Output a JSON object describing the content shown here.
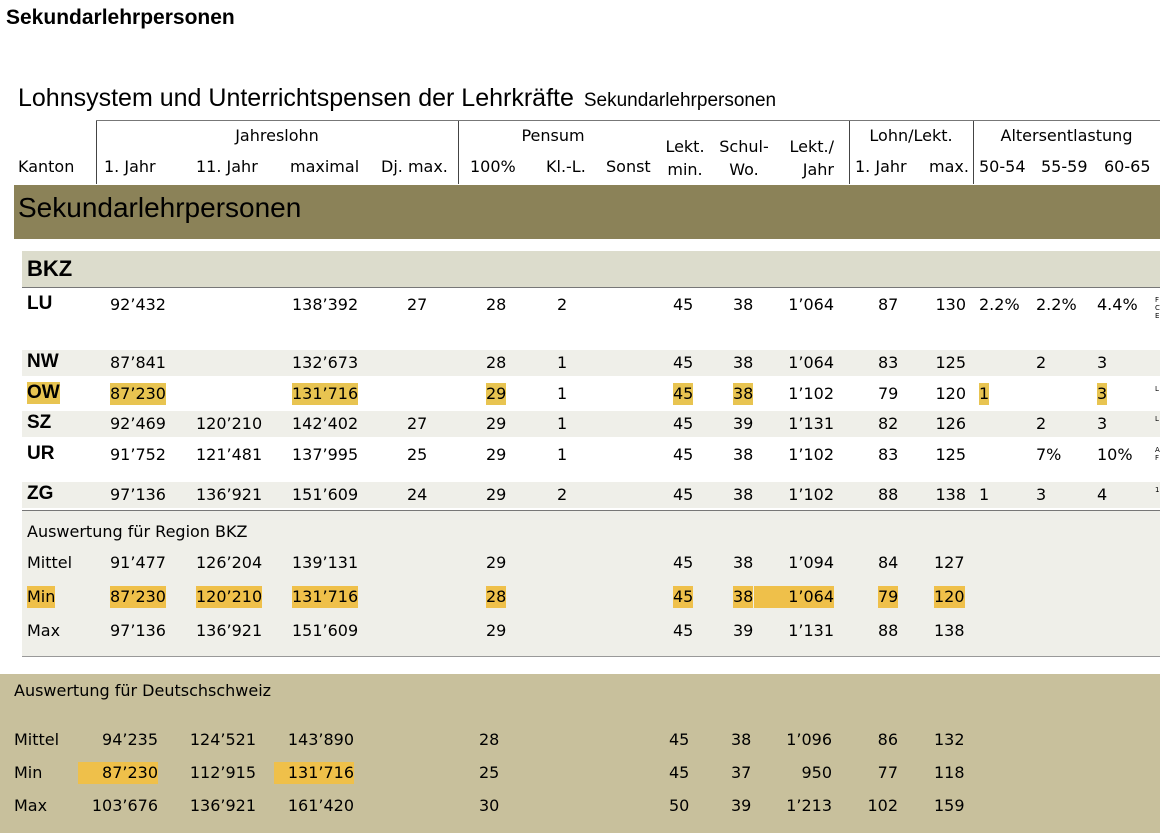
{
  "page_title": "Sekundarlehrpersonen",
  "doc_title": "Lohnsystem und Unterrichtspensen der Lehrkräfte",
  "doc_subtitle": "Sekundarlehrpersonen",
  "headers": {
    "group_jahreslohn": "Jahreslohn",
    "group_pensum": "Pensum",
    "group_lohn_lekt": "Lohn/Lekt.",
    "group_altersentlastung": "Altersentlastung",
    "kanton": "Kanton",
    "jahr1": "1. Jahr",
    "jahr11": "11. Jahr",
    "maximal": "maximal",
    "dj_max": "Dj. max.",
    "p100": "100%",
    "kl_l": "Kl.-L.",
    "sonst": "Sonst",
    "lekt_min_1": "Lekt.",
    "lekt_min_2": "min.",
    "schul_wo_1": "Schul-",
    "schul_wo_2": "Wo.",
    "lekt_jahr_1": "Lekt./",
    "lekt_jahr_2": "Jahr",
    "ll_jahr1": "1. Jahr",
    "ll_max": "max.",
    "a50": "50-54",
    "a55": "55-59",
    "a60": "60-65"
  },
  "section_band": "Sekundarlehrpersonen",
  "region_band": "BKZ",
  "rows": [
    {
      "kanton": "LU",
      "j1": "92’432",
      "j11": "",
      "max": "138’392",
      "dj": "27",
      "p100": "28",
      "kl": "2",
      "sonst": "",
      "lekt": "45",
      "wo": "38",
      "lj": "1’064",
      "ll1": "87",
      "llm": "130",
      "a50": "2.2%",
      "a55": "2.2%",
      "a60": "4.4%",
      "note": "F C E"
    },
    {
      "kanton": "NW",
      "j1": "87’841",
      "j11": "",
      "max": "132’673",
      "dj": "",
      "p100": "28",
      "kl": "1",
      "sonst": "",
      "lekt": "45",
      "wo": "38",
      "lj": "1’064",
      "ll1": "83",
      "llm": "125",
      "a50": "",
      "a55": "2",
      "a60": "3",
      "note": ""
    },
    {
      "kanton": "OW",
      "j1": "87’230",
      "j11": "",
      "max": "131’716",
      "dj": "",
      "p100": "29",
      "kl": "1",
      "sonst": "",
      "lekt": "45",
      "wo": "38",
      "lj": "1’102",
      "ll1": "79",
      "llm": "120",
      "a50": "1",
      "a55": "",
      "a60": "3",
      "note": "L"
    },
    {
      "kanton": "SZ",
      "j1": "92’469",
      "j11": "120’210",
      "max": "142’402",
      "dj": "27",
      "p100": "29",
      "kl": "1",
      "sonst": "",
      "lekt": "45",
      "wo": "39",
      "lj": "1’131",
      "ll1": "82",
      "llm": "126",
      "a50": "",
      "a55": "2",
      "a60": "3",
      "note": "L"
    },
    {
      "kanton": "UR",
      "j1": "91’752",
      "j11": "121’481",
      "max": "137’995",
      "dj": "25",
      "p100": "29",
      "kl": "1",
      "sonst": "",
      "lekt": "45",
      "wo": "38",
      "lj": "1’102",
      "ll1": "83",
      "llm": "125",
      "a50": "",
      "a55": "7%",
      "a60": "10%",
      "note": "A F"
    },
    {
      "kanton": "ZG",
      "j1": "97’136",
      "j11": "136’921",
      "max": "151’609",
      "dj": "24",
      "p100": "29",
      "kl": "2",
      "sonst": "",
      "lekt": "45",
      "wo": "38",
      "lj": "1’102",
      "ll1": "88",
      "llm": "138",
      "a50": "1",
      "a55": "3",
      "a60": "4",
      "note": "1"
    }
  ],
  "region_eval": {
    "title": "Auswertung für Region BKZ",
    "rows": [
      {
        "label": "Mittel",
        "j1": "91’477",
        "j11": "126’204",
        "max": "139’131",
        "p100": "29",
        "lekt": "45",
        "wo": "38",
        "lj": "1’094",
        "ll1": "84",
        "llm": "127"
      },
      {
        "label": "Min",
        "j1": "87’230",
        "j11": "120’210",
        "max": "131’716",
        "p100": "28",
        "lekt": "45",
        "wo": "38",
        "lj": "1’064",
        "ll1": "79",
        "llm": "120"
      },
      {
        "label": "Max",
        "j1": "97’136",
        "j11": "136’921",
        "max": "151’609",
        "p100": "29",
        "lekt": "45",
        "wo": "39",
        "lj": "1’131",
        "ll1": "88",
        "llm": "138"
      }
    ]
  },
  "ch_eval": {
    "title": "Auswertung für Deutschschweiz",
    "rows": [
      {
        "label": "Mittel",
        "j1": "94’235",
        "j11": "124’521",
        "max": "143’890",
        "p100": "28",
        "lekt": "45",
        "wo": "38",
        "lj": "1’096",
        "ll1": "86",
        "llm": "132"
      },
      {
        "label": "Min",
        "j1": "87’230",
        "j11": "112’915",
        "max": "131’716",
        "p100": "25",
        "lekt": "45",
        "wo": "37",
        "lj": "950",
        "ll1": "77",
        "llm": "118"
      },
      {
        "label": "Max",
        "j1": "103’676",
        "j11": "136’921",
        "max": "161’420",
        "p100": "30",
        "lekt": "50",
        "wo": "39",
        "lj": "1’213",
        "ll1": "102",
        "llm": "159"
      }
    ]
  },
  "colors": {
    "band_dark": "#8b8258",
    "band_light": "#dcdccc",
    "ch_band": "#c8c09c",
    "highlight": "#e8c451"
  }
}
